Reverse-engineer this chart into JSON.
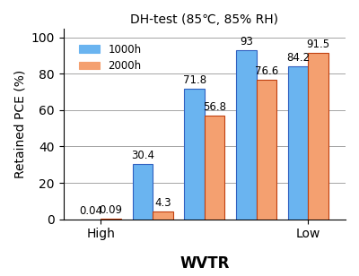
{
  "title": "DH-test (85℃, 85% RH)",
  "series_1000h": [
    0.04,
    30.4,
    71.8,
    93,
    84.2
  ],
  "series_2000h": [
    0.09,
    4.3,
    56.8,
    76.6,
    91.5
  ],
  "bar_positions": [
    0,
    0.9,
    1.8,
    2.7,
    3.6
  ],
  "bar_width": 0.35,
  "color_1000h": "#6ab4f0",
  "color_2000h": "#f4a070",
  "edge_color_1000h": "#3060c0",
  "edge_color_2000h": "#c04010",
  "ylabel": "Retained PCE (%)",
  "xlabel": "WVTR",
  "ylim": [
    0,
    105
  ],
  "yticks": [
    0,
    20,
    40,
    60,
    80,
    100
  ],
  "legend_labels": [
    "1000h",
    "2000h"
  ],
  "background_color": "#ffffff",
  "label_fontsize": 8.5,
  "title_fontsize": 10,
  "axis_label_fontsize": 10,
  "xlabel_fontsize": 12
}
